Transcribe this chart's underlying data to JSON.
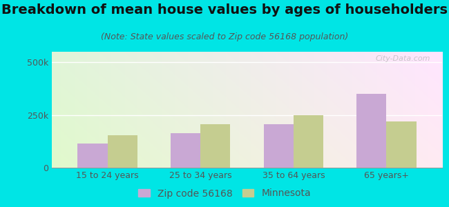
{
  "title": "Breakdown of mean house values by ages of householders",
  "subtitle": "(Note: State values scaled to Zip code 56168 population)",
  "categories": [
    "15 to 24 years",
    "25 to 34 years",
    "35 to 64 years",
    "65 years+"
  ],
  "zip_values": [
    115000,
    165000,
    205000,
    350000
  ],
  "mn_values": [
    155000,
    205000,
    250000,
    220000
  ],
  "zip_color": "#c9a8d4",
  "mn_color": "#c5cd90",
  "background_outer": "#00e5e5",
  "ylim": [
    0,
    550000
  ],
  "ytick_labels": [
    "0",
    "250k",
    "500k"
  ],
  "ytick_vals": [
    0,
    250000,
    500000
  ],
  "legend_zip_label": "Zip code 56168",
  "legend_mn_label": "Minnesota",
  "bar_width": 0.32,
  "title_fontsize": 14,
  "subtitle_fontsize": 9,
  "tick_fontsize": 9,
  "legend_fontsize": 10,
  "watermark": "City-Data.com"
}
